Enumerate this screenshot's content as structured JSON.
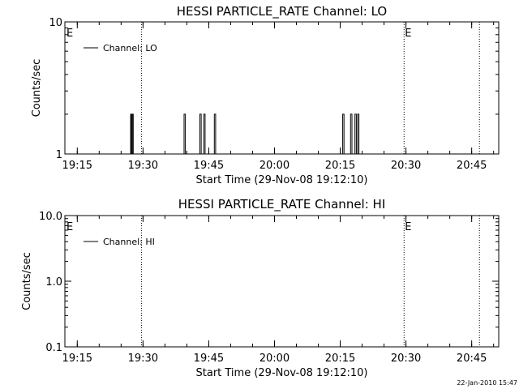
{
  "chart_data": [
    {
      "type": "line",
      "title": "HESSI PARTICLE_RATE Channel: LO",
      "xlabel": "Start Time (29-Nov-08 19:12:10)",
      "ylabel": "Counts/sec",
      "y_scale": "log",
      "ylim": [
        1,
        10
      ],
      "ytick_labels": [
        "1",
        "10"
      ],
      "x_unit": "minutes since 19:12:10",
      "xlim": [
        0,
        99
      ],
      "xtick_labels": [
        "19:15",
        "19:30",
        "19:45",
        "20:00",
        "20:15",
        "20:30",
        "20:45"
      ],
      "xtick_values": [
        2.83,
        17.83,
        32.83,
        47.83,
        62.83,
        77.83,
        92.83
      ],
      "legend": "top-left",
      "series": [
        {
          "name": "Channel: LO",
          "x": [
            0,
            14.8,
            15.0,
            15.2,
            15.4,
            15.6,
            26.9,
            27.2,
            27.5,
            30.5,
            30.8,
            31.1,
            31.4,
            31.7,
            32.0,
            33.8,
            34.1,
            34.4,
            63.1,
            63.4,
            63.7,
            64.9,
            65.2,
            65.5,
            65.9,
            66.2,
            66.5,
            66.8,
            67.1
          ],
          "values": [
            1,
            1,
            2,
            1,
            2,
            1,
            1,
            2,
            1,
            1,
            2,
            1,
            1,
            2,
            1,
            1,
            2,
            1,
            1,
            2,
            1,
            1,
            2,
            1,
            1,
            2,
            1,
            2,
            1
          ]
        }
      ],
      "event_lines_x": [
        17.5,
        77.4,
        94.6
      ],
      "event_markers": [
        {
          "label": "E",
          "x": 0
        },
        {
          "label": "E",
          "x": 77.4
        }
      ]
    },
    {
      "type": "line",
      "title": "HESSI PARTICLE_RATE Channel: HI",
      "xlabel": "Start Time (29-Nov-08 19:12:10)",
      "ylabel": "Counts/sec",
      "y_scale": "log",
      "ylim": [
        0.1,
        10
      ],
      "ytick_labels": [
        "0.1",
        "1.0",
        "10.0"
      ],
      "x_unit": "minutes since 19:12:10",
      "xlim": [
        0,
        99
      ],
      "xtick_labels": [
        "19:15",
        "19:30",
        "19:45",
        "20:00",
        "20:15",
        "20:30",
        "20:45"
      ],
      "xtick_values": [
        2.83,
        17.83,
        32.83,
        47.83,
        62.83,
        77.83,
        92.83
      ],
      "legend": "top-left",
      "series": [
        {
          "name": "Channel: HI",
          "x": [],
          "values": []
        }
      ],
      "event_lines_x": [
        17.5,
        77.4,
        94.6
      ],
      "event_markers": [
        {
          "label": "E",
          "x": 0
        },
        {
          "label": "E",
          "x": 77.4
        }
      ]
    }
  ],
  "footer": {
    "timestamp": "22-Jan-2010 15:47"
  }
}
